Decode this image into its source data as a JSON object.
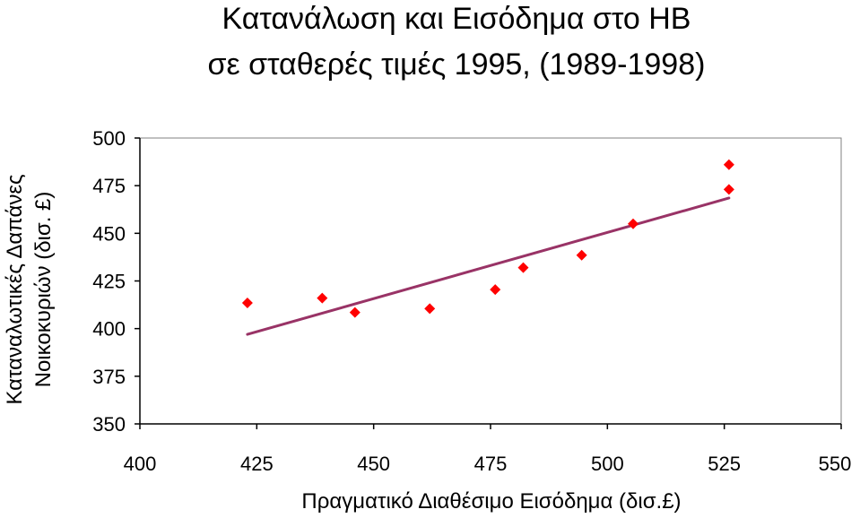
{
  "chart_data": {
    "type": "scatter",
    "title": [
      "Κατανάλωση και Εισόδημα στο ΗΒ",
      "σε σταθερές τιμές 1995, (1989-1998)"
    ],
    "xlabel": "Πραγματικό Διαθέσιμο Εισόδημα (δισ.£)",
    "ylabel": [
      "Καταναλωτικές Δαπάνες",
      "Νοικοκυριών (δισ. £)"
    ],
    "xlim": [
      400,
      550
    ],
    "ylim": [
      350,
      500
    ],
    "xticks": [
      400,
      425,
      450,
      475,
      500,
      525,
      550
    ],
    "yticks": [
      350,
      375,
      400,
      425,
      450,
      475,
      500
    ],
    "grid": false,
    "legend": "none",
    "points": {
      "x": [
        423,
        439,
        446,
        462,
        476,
        482,
        494.5,
        505.5,
        526,
        526
      ],
      "y": [
        413.5,
        416,
        408.5,
        410.5,
        420.5,
        432,
        438.5,
        455,
        486,
        473
      ],
      "color": "#ff0000",
      "marker": "diamond"
    },
    "trendline": {
      "x": [
        423,
        526
      ],
      "y": [
        397,
        468.5
      ],
      "color": "#993366"
    }
  }
}
